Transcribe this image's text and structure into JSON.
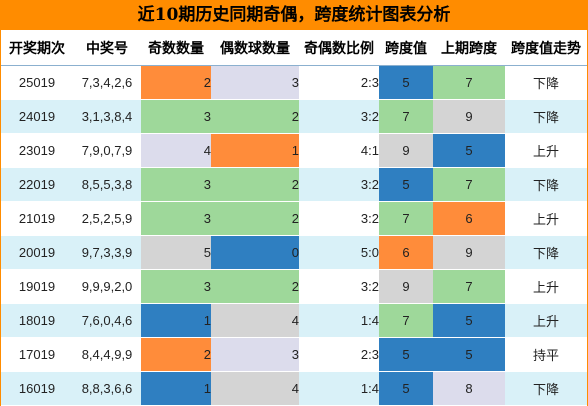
{
  "title": "近10期历史同期奇偶，跨度统计图表分析",
  "headers": [
    "开奖期次",
    "中奖号",
    "奇数数量",
    "偶数球数量",
    "奇偶数比例",
    "跨度值",
    "上期跨度",
    "跨度值走势"
  ],
  "colors": {
    "orange": "#ff8c3a",
    "green": "#9ed89a",
    "lavender": "#dcdcec",
    "blue": "#2f7fc1",
    "grey": "#d4d4d4",
    "title_bg": "#ff8c00",
    "stripe": "#d9f1f8"
  },
  "rows": [
    {
      "issue": "25019",
      "numbers": "7,3,4,2,6",
      "odd": "2",
      "even": "3",
      "ratio": "2:3",
      "span": "5",
      "prev_span": "7",
      "trend": "下降",
      "odd_color": "orange",
      "even_color": "lavender",
      "span_color": "blue",
      "prev_color": "green"
    },
    {
      "issue": "24019",
      "numbers": "3,1,3,8,4",
      "odd": "3",
      "even": "2",
      "ratio": "3:2",
      "span": "7",
      "prev_span": "9",
      "trend": "下降",
      "odd_color": "green",
      "even_color": "green",
      "span_color": "green",
      "prev_color": "grey"
    },
    {
      "issue": "23019",
      "numbers": "7,9,0,7,9",
      "odd": "4",
      "even": "1",
      "ratio": "4:1",
      "span": "9",
      "prev_span": "5",
      "trend": "上升",
      "odd_color": "lavender",
      "even_color": "orange",
      "span_color": "grey",
      "prev_color": "blue"
    },
    {
      "issue": "22019",
      "numbers": "8,5,5,3,8",
      "odd": "3",
      "even": "2",
      "ratio": "3:2",
      "span": "5",
      "prev_span": "7",
      "trend": "下降",
      "odd_color": "green",
      "even_color": "green",
      "span_color": "blue",
      "prev_color": "green"
    },
    {
      "issue": "21019",
      "numbers": "2,5,2,5,9",
      "odd": "3",
      "even": "2",
      "ratio": "3:2",
      "span": "7",
      "prev_span": "6",
      "trend": "上升",
      "odd_color": "green",
      "even_color": "green",
      "span_color": "green",
      "prev_color": "orange"
    },
    {
      "issue": "20019",
      "numbers": "9,7,3,3,9",
      "odd": "5",
      "even": "0",
      "ratio": "5:0",
      "span": "6",
      "prev_span": "9",
      "trend": "下降",
      "odd_color": "grey",
      "even_color": "blue",
      "span_color": "orange",
      "prev_color": "grey"
    },
    {
      "issue": "19019",
      "numbers": "9,9,9,2,0",
      "odd": "3",
      "even": "2",
      "ratio": "3:2",
      "span": "9",
      "prev_span": "7",
      "trend": "上升",
      "odd_color": "green",
      "even_color": "green",
      "span_color": "grey",
      "prev_color": "green"
    },
    {
      "issue": "18019",
      "numbers": "7,6,0,4,6",
      "odd": "1",
      "even": "4",
      "ratio": "1:4",
      "span": "7",
      "prev_span": "5",
      "trend": "上升",
      "odd_color": "blue",
      "even_color": "grey",
      "span_color": "green",
      "prev_color": "blue"
    },
    {
      "issue": "17019",
      "numbers": "8,4,4,9,9",
      "odd": "2",
      "even": "3",
      "ratio": "2:3",
      "span": "5",
      "prev_span": "5",
      "trend": "持平",
      "odd_color": "orange",
      "even_color": "lavender",
      "span_color": "blue",
      "prev_color": "blue"
    },
    {
      "issue": "16019",
      "numbers": "8,8,3,6,6",
      "odd": "1",
      "even": "4",
      "ratio": "1:4",
      "span": "5",
      "prev_span": "8",
      "trend": "下降",
      "odd_color": "blue",
      "even_color": "grey",
      "span_color": "blue",
      "prev_color": "lavender"
    }
  ]
}
